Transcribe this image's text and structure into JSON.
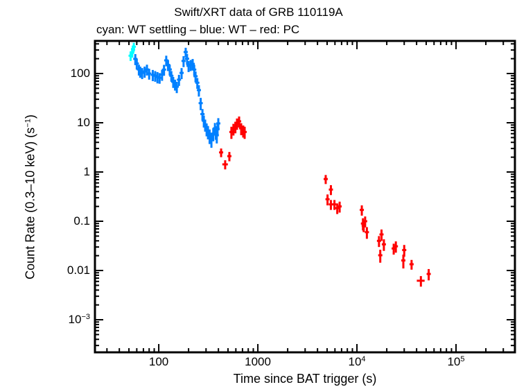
{
  "chart_data": {
    "type": "scatter",
    "title": "Swift/XRT data of GRB 110119A",
    "subtitle": "cyan: WT settling – blue: WT – red: PC",
    "xlabel": "Time since BAT trigger (s)",
    "ylabel": {
      "main": "Count Rate (0.3–10 keV) (s",
      "sup": "−1",
      "end": ")"
    },
    "xscale": "log",
    "yscale": "log",
    "xlim": [
      22.7,
      393000
    ],
    "ylim": [
      0.000218,
      459
    ],
    "grid": false,
    "x_ticks": [
      {
        "value": 100,
        "base": "100",
        "exp": ""
      },
      {
        "value": 1000,
        "base": "1000",
        "exp": ""
      },
      {
        "value": 10000,
        "base": "10",
        "exp": "4"
      },
      {
        "value": 100000,
        "base": "10",
        "exp": "5"
      }
    ],
    "y_ticks": [
      {
        "value": 100,
        "base": "100",
        "exp": ""
      },
      {
        "value": 10,
        "base": "10",
        "exp": ""
      },
      {
        "value": 1,
        "base": "1",
        "exp": ""
      },
      {
        "value": 0.1,
        "base": "0.1",
        "exp": ""
      },
      {
        "value": 0.01,
        "base": "0.01",
        "exp": ""
      },
      {
        "value": 0.001,
        "base": "10",
        "exp": "−3"
      }
    ],
    "series": [
      {
        "name": "WT settling",
        "color": "#00ffff",
        "points": [
          [
            52,
            1,
            230,
            50
          ],
          [
            54,
            1,
            270,
            60
          ],
          [
            55,
            1,
            310,
            60
          ],
          [
            56,
            1,
            350,
            70
          ]
        ]
      },
      {
        "name": "WT",
        "color": "#0080ff",
        "points": [
          [
            58,
            1,
            198,
            50
          ],
          [
            60,
            1,
            160,
            40
          ],
          [
            63,
            1,
            121,
            30
          ],
          [
            65,
            1,
            110,
            28
          ],
          [
            68,
            1,
            103,
            26
          ],
          [
            72,
            1,
            110,
            28
          ],
          [
            76,
            1,
            121,
            30
          ],
          [
            80,
            1,
            100,
            25
          ],
          [
            87,
            1,
            94,
            24
          ],
          [
            92,
            1,
            90,
            22
          ],
          [
            97,
            1,
            85,
            22
          ],
          [
            102,
            1,
            82,
            20
          ],
          [
            108,
            1,
            95,
            24
          ],
          [
            113,
            1,
            120,
            30
          ],
          [
            119,
            1,
            185,
            45
          ],
          [
            124,
            1,
            150,
            38
          ],
          [
            129,
            1,
            121,
            30
          ],
          [
            134,
            1,
            90,
            22
          ],
          [
            140,
            1,
            68,
            17
          ],
          [
            146,
            1,
            60,
            15
          ],
          [
            152,
            1,
            54,
            14
          ],
          [
            160,
            1,
            75,
            19
          ],
          [
            170,
            1,
            103,
            26
          ],
          [
            178,
            1,
            180,
            45
          ],
          [
            187,
            1,
            273,
            60
          ],
          [
            193,
            1,
            200,
            50
          ],
          [
            200,
            1,
            143,
            36
          ],
          [
            210,
            1,
            150,
            38
          ],
          [
            220,
            1,
            157,
            40
          ],
          [
            228,
            1,
            120,
            30
          ],
          [
            235,
            1,
            88,
            22
          ],
          [
            245,
            1,
            65,
            16
          ],
          [
            254,
            1,
            46,
            12
          ],
          [
            265,
            1,
            25,
            7
          ],
          [
            276,
            1,
            15,
            4
          ],
          [
            285,
            1,
            11,
            3
          ],
          [
            294,
            1,
            9.1,
            2.5
          ],
          [
            304,
            1,
            7.5,
            2.2
          ],
          [
            314,
            1,
            6.6,
            2
          ],
          [
            326,
            1,
            5.5,
            1.8
          ],
          [
            340,
            1,
            4.7,
            1.6
          ],
          [
            355,
            1,
            6,
            1.8
          ],
          [
            369,
            1,
            7.7,
            2.2
          ],
          [
            377,
            1,
            6.5,
            2
          ],
          [
            385,
            1,
            5.6,
            1.8
          ],
          [
            392,
            1,
            7.5,
            2.2
          ],
          [
            399,
            1,
            9.7,
            2.7
          ]
        ]
      },
      {
        "name": "PC",
        "color": "#ff0000",
        "points": [
          [
            426,
            20,
            2.5,
            0.5
          ],
          [
            468,
            30,
            1.43,
            0.3
          ],
          [
            516,
            20,
            2.1,
            0.45
          ],
          [
            541,
            10,
            6.5,
            1.8
          ],
          [
            567,
            10,
            7.5,
            2
          ],
          [
            593,
            10,
            8.3,
            2.2
          ],
          [
            616,
            10,
            9.7,
            2.5
          ],
          [
            647,
            10,
            10.7,
            2.7
          ],
          [
            679,
            10,
            7.7,
            2.1
          ],
          [
            712,
            10,
            6.9,
            1.9
          ],
          [
            736,
            12,
            6.5,
            1.8
          ],
          [
            4840,
            60,
            0.72,
            0.15
          ],
          [
            5050,
            80,
            0.28,
            0.07
          ],
          [
            5460,
            100,
            0.44,
            0.1
          ],
          [
            5460,
            100,
            0.22,
            0.05
          ],
          [
            5930,
            120,
            0.22,
            0.05
          ],
          [
            6330,
            120,
            0.185,
            0.045
          ],
          [
            6690,
            120,
            0.2,
            0.05
          ],
          [
            11200,
            150,
            0.17,
            0.04
          ],
          [
            11500,
            150,
            0.09,
            0.025
          ],
          [
            11700,
            150,
            0.082,
            0.022
          ],
          [
            12100,
            150,
            0.1,
            0.025
          ],
          [
            12600,
            150,
            0.06,
            0.016
          ],
          [
            16700,
            300,
            0.04,
            0.01
          ],
          [
            17200,
            300,
            0.0204,
            0.006
          ],
          [
            17700,
            300,
            0.054,
            0.014
          ],
          [
            18700,
            400,
            0.034,
            0.009
          ],
          [
            23500,
            500,
            0.028,
            0.007
          ],
          [
            24700,
            500,
            0.031,
            0.008
          ],
          [
            29400,
            600,
            0.016,
            0.005
          ],
          [
            30000,
            600,
            0.026,
            0.007
          ],
          [
            35600,
            900,
            0.0134,
            0.003
          ],
          [
            44200,
            4000,
            0.0062,
            0.0015
          ],
          [
            53000,
            1200,
            0.0085,
            0.0022
          ]
        ]
      }
    ]
  }
}
